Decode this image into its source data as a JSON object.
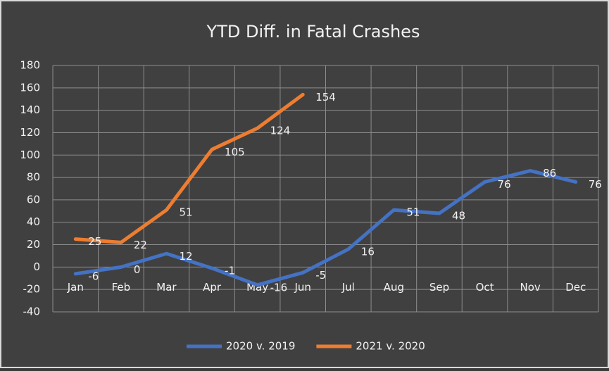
{
  "chart_data": {
    "type": "line",
    "title": "YTD Diff. in Fatal Crashes",
    "categories": [
      "Jan",
      "Feb",
      "Mar",
      "Apr",
      "May",
      "Jun",
      "Jul",
      "Aug",
      "Sep",
      "Oct",
      "Nov",
      "Dec"
    ],
    "series": [
      {
        "name": "2020 v. 2019",
        "color": "#4472c4",
        "values": [
          -6,
          0,
          12,
          -1,
          -16,
          -5,
          16,
          51,
          48,
          76,
          86,
          76
        ]
      },
      {
        "name": "2021 v. 2020",
        "color": "#ed7d31",
        "values": [
          25,
          22,
          51,
          105,
          124,
          154,
          null,
          null,
          null,
          null,
          null,
          null
        ]
      }
    ],
    "ylim": [
      -40,
      180
    ],
    "yticks": [
      -40,
      -20,
      0,
      20,
      40,
      60,
      80,
      100,
      120,
      140,
      160,
      180
    ],
    "grid": true,
    "legend": "bottom"
  }
}
